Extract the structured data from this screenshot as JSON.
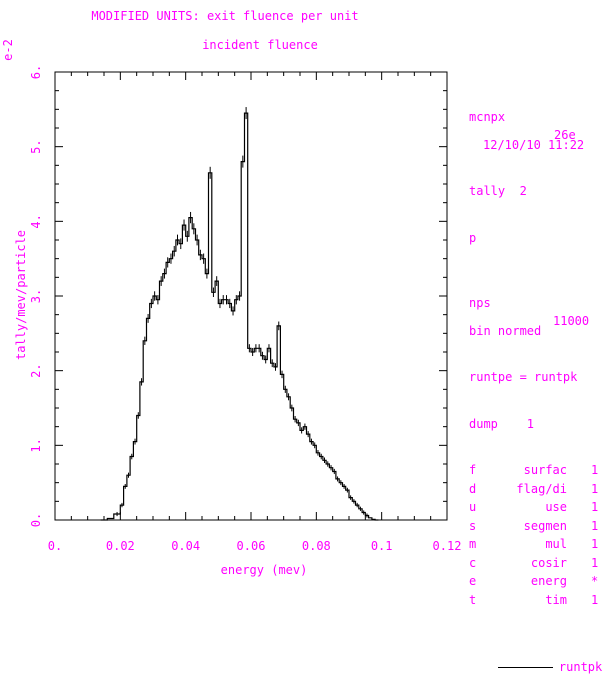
{
  "header": {
    "title_line1": "MODIFIED UNITS: exit fluence per unit",
    "title_line2": "incident fluence"
  },
  "side_panel": {
    "code": "mcnpx",
    "version": "26e",
    "datetime": "12/10/10 11:22",
    "tally": "tally  2",
    "particle": "p",
    "nps_label": "nps",
    "nps_value": "11000",
    "bin_normed": "bin normed",
    "runtpe": "runtpe = runtpk",
    "dump": "dump    1",
    "flags": [
      {
        "key": "f",
        "name": "surfac",
        "value": "1"
      },
      {
        "key": "d",
        "name": "flag/di",
        "value": "1"
      },
      {
        "key": "u",
        "name": "use",
        "value": "1"
      },
      {
        "key": "s",
        "name": "segmen",
        "value": "1"
      },
      {
        "key": "m",
        "name": "mul",
        "value": "1"
      },
      {
        "key": "c",
        "name": "cosir",
        "value": "1"
      },
      {
        "key": "e",
        "name": "energ",
        "value": "*"
      },
      {
        "key": "t",
        "name": "tim",
        "value": "1"
      }
    ],
    "legend_label": "runtpk"
  },
  "chart_data": {
    "type": "line",
    "title": "MODIFIED UNITS: exit fluence per unit incident fluence",
    "xlabel": "energy (mev)",
    "ylabel": "tally/mev/particle",
    "y_multiplier": "e-2",
    "xlim": [
      0,
      0.12
    ],
    "ylim": [
      0,
      6
    ],
    "x_ticks": [
      "0.",
      "0.02",
      "0.04",
      "0.06",
      "0.08",
      "0.1",
      "0.12"
    ],
    "y_ticks": [
      "0.",
      "1.",
      "2.",
      "3.",
      "4.",
      "5.",
      "6."
    ],
    "grid": false,
    "line_color": "#000000",
    "text_color": "#ff00ff",
    "series": [
      {
        "name": "runtpk",
        "style": "step",
        "x": [
          0.014,
          0.016,
          0.018,
          0.02,
          0.021,
          0.022,
          0.023,
          0.024,
          0.025,
          0.026,
          0.027,
          0.028,
          0.029,
          0.03,
          0.031,
          0.032,
          0.033,
          0.034,
          0.035,
          0.036,
          0.037,
          0.038,
          0.039,
          0.04,
          0.041,
          0.042,
          0.043,
          0.044,
          0.045,
          0.046,
          0.047,
          0.048,
          0.049,
          0.05,
          0.051,
          0.052,
          0.053,
          0.054,
          0.055,
          0.056,
          0.057,
          0.058,
          0.059,
          0.06,
          0.061,
          0.062,
          0.063,
          0.064,
          0.065,
          0.066,
          0.067,
          0.068,
          0.069,
          0.07,
          0.071,
          0.072,
          0.073,
          0.074,
          0.075,
          0.076,
          0.077,
          0.078,
          0.079,
          0.08,
          0.081,
          0.082,
          0.083,
          0.084,
          0.085,
          0.086,
          0.087,
          0.088,
          0.089,
          0.09,
          0.091,
          0.092,
          0.093,
          0.094,
          0.095,
          0.096,
          0.097,
          0.098
        ],
        "y": [
          0.0,
          0.02,
          0.08,
          0.2,
          0.45,
          0.6,
          0.85,
          1.05,
          1.4,
          1.85,
          2.4,
          2.7,
          2.9,
          3.0,
          2.95,
          3.2,
          3.3,
          3.45,
          3.5,
          3.6,
          3.75,
          3.7,
          3.95,
          3.8,
          4.05,
          3.9,
          3.75,
          3.55,
          3.5,
          3.3,
          4.65,
          3.05,
          3.2,
          2.9,
          2.95,
          2.95,
          2.9,
          2.8,
          2.95,
          3.0,
          4.8,
          5.45,
          2.3,
          2.25,
          2.3,
          2.3,
          2.2,
          2.15,
          2.3,
          2.1,
          2.05,
          2.6,
          1.95,
          1.75,
          1.65,
          1.5,
          1.35,
          1.3,
          1.2,
          1.25,
          1.15,
          1.05,
          1.0,
          0.9,
          0.85,
          0.8,
          0.75,
          0.7,
          0.65,
          0.55,
          0.5,
          0.45,
          0.4,
          0.3,
          0.25,
          0.2,
          0.15,
          0.1,
          0.06,
          0.03,
          0.01,
          0.0
        ]
      }
    ]
  }
}
